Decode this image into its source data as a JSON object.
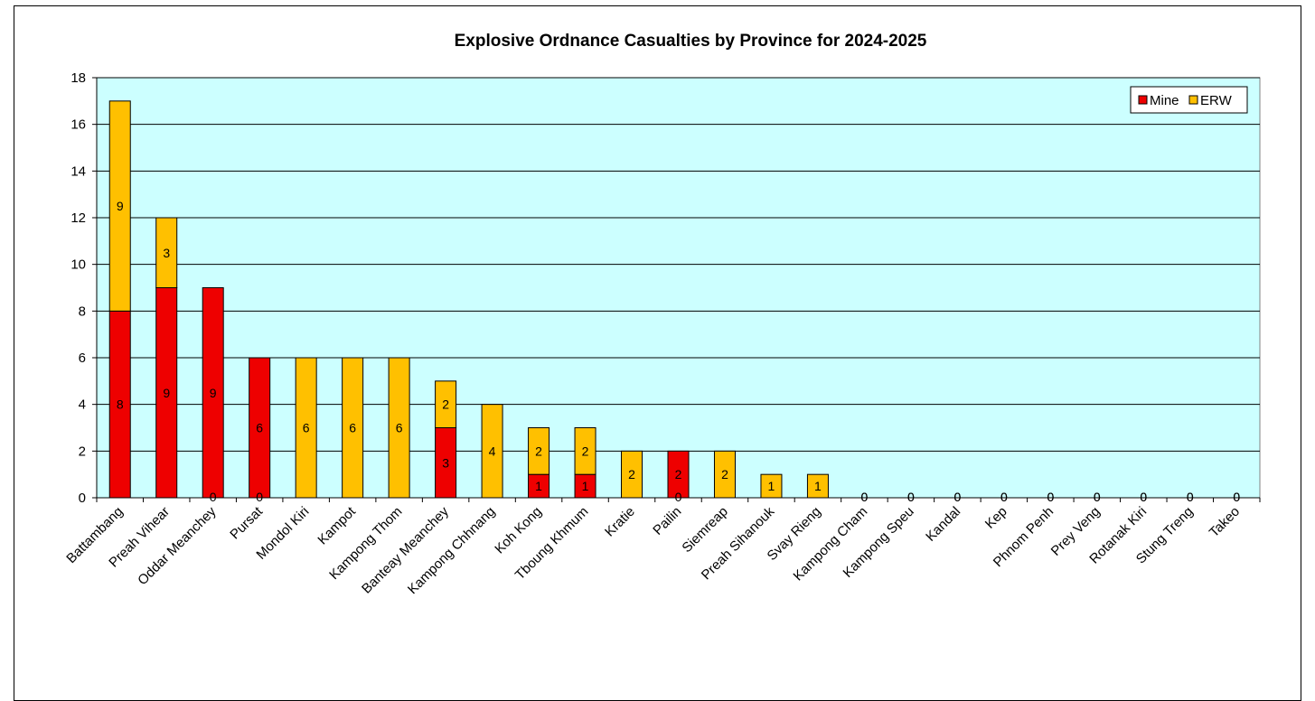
{
  "chart_data": {
    "type": "bar",
    "stacked": true,
    "title": "Explosive Ordnance Casualties by Province for 2024-2025",
    "categories": [
      "Battambang",
      "Preah Vihear",
      "Oddar Meanchey",
      "Pursat",
      "Mondol Kiri",
      "Kampot",
      "Kampong Thom",
      "Banteay Meanchey",
      "Kampong Chhnang",
      "Koh Kong",
      "Tboung Khmum",
      "Kratie",
      "Pailin",
      "Siemreap",
      "Preah Sihanouk",
      "Svay Rieng",
      "Kampong Cham",
      "Kampong Speu",
      "Kandal",
      "Kep",
      "Phnom Penh",
      "Prey Veng",
      "Rotanak Kiri",
      "Stung Treng",
      "Takeo"
    ],
    "series": [
      {
        "name": "Mine",
        "color": "#ee0000",
        "values": [
          8,
          9,
          9,
          6,
          0,
          0,
          0,
          3,
          0,
          1,
          1,
          0,
          2,
          0,
          0,
          0,
          0,
          0,
          0,
          0,
          0,
          0,
          0,
          0,
          0
        ]
      },
      {
        "name": "ERW",
        "color": "#ffc000",
        "values": [
          9,
          3,
          0,
          0,
          6,
          6,
          6,
          2,
          4,
          2,
          2,
          2,
          0,
          2,
          1,
          1,
          0,
          0,
          0,
          0,
          0,
          0,
          0,
          0,
          0
        ]
      }
    ],
    "ylim": [
      0,
      18
    ],
    "yticks": [
      0,
      2,
      4,
      6,
      8,
      10,
      12,
      14,
      16,
      18
    ],
    "grid": true,
    "plot_background": "#ccffff",
    "legend": {
      "position": "top-right",
      "entries": [
        "Mine",
        "ERW"
      ]
    }
  }
}
